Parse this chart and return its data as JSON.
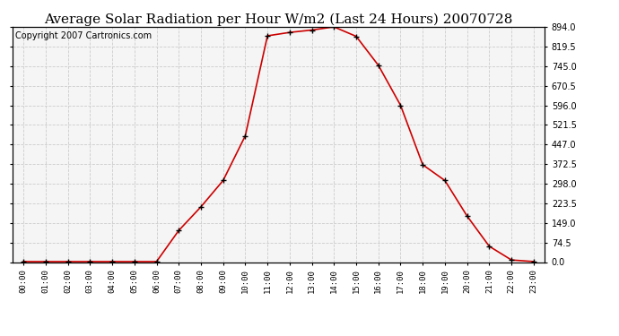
{
  "title": "Average Solar Radiation per Hour W/m2 (Last 24 Hours) 20070728",
  "copyright": "Copyright 2007 Cartronics.com",
  "hours": [
    "00:00",
    "01:00",
    "02:00",
    "03:00",
    "04:00",
    "05:00",
    "06:00",
    "07:00",
    "08:00",
    "09:00",
    "10:00",
    "11:00",
    "12:00",
    "13:00",
    "14:00",
    "15:00",
    "16:00",
    "17:00",
    "18:00",
    "19:00",
    "20:00",
    "21:00",
    "22:00",
    "23:00"
  ],
  "values": [
    2,
    2,
    2,
    2,
    2,
    2,
    2,
    120,
    210,
    310,
    480,
    860,
    873,
    882,
    894,
    858,
    748,
    596,
    370,
    310,
    175,
    60,
    8,
    2
  ],
  "line_color": "#cc0000",
  "marker_color": "#000000",
  "bg_color": "#ffffff",
  "plot_bg_color": "#f5f5f5",
  "grid_color": "#cccccc",
  "ylim_min": 0.0,
  "ylim_max": 894.0,
  "ytick_values": [
    0.0,
    74.5,
    149.0,
    223.5,
    298.0,
    372.5,
    447.0,
    521.5,
    596.0,
    670.5,
    745.0,
    819.5,
    894.0
  ],
  "title_fontsize": 11,
  "copyright_fontsize": 7
}
